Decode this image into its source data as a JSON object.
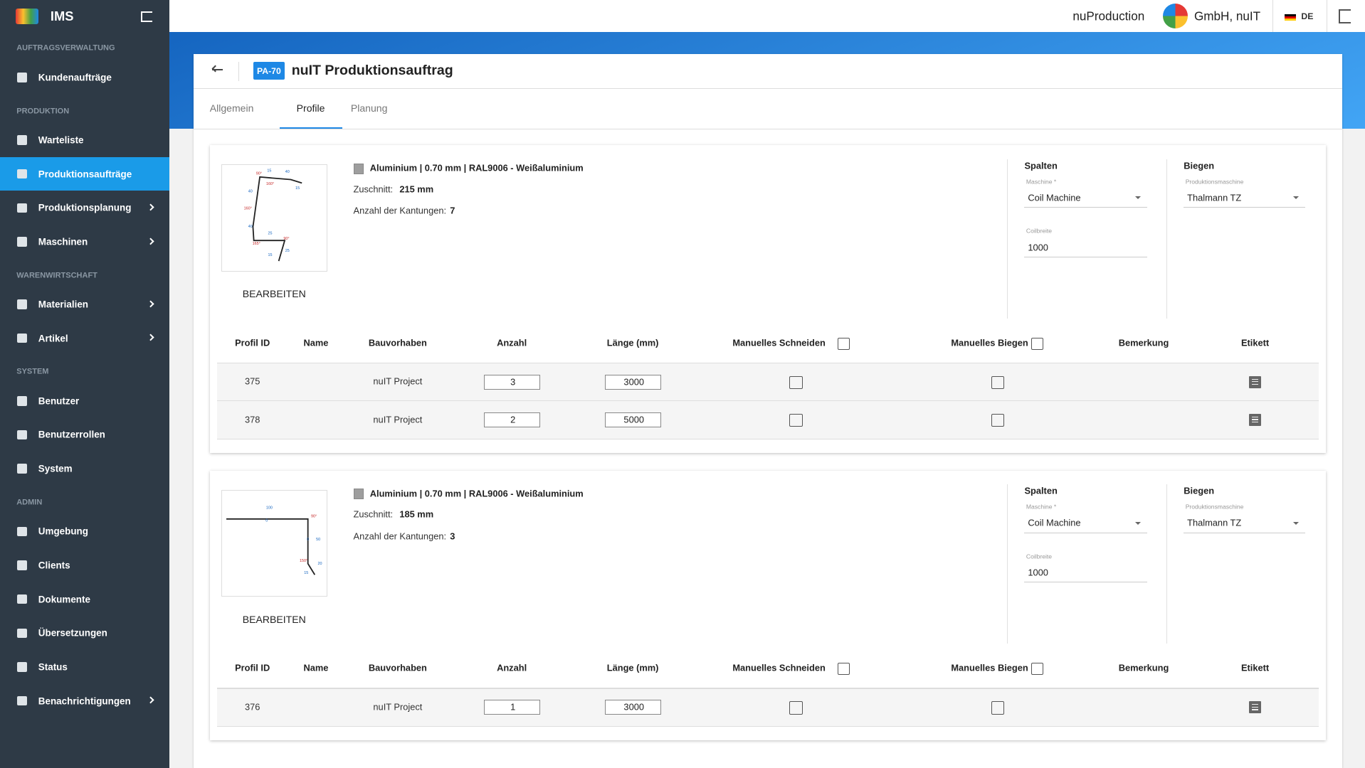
{
  "app": {
    "name": "IMS"
  },
  "sidebar": [
    {
      "section": "AUFTRAGSVERWALTUNG",
      "items": [
        {
          "label": "Kundenaufträge"
        }
      ]
    },
    {
      "section": "PRODUKTION",
      "items": [
        {
          "label": "Warteliste"
        },
        {
          "label": "Produktionsaufträge",
          "active": true
        },
        {
          "label": "Produktionsplanung",
          "submenu": true
        },
        {
          "label": "Maschinen",
          "submenu": true
        }
      ]
    },
    {
      "section": "WARENWIRTSCHAFT",
      "items": [
        {
          "label": "Materialien",
          "submenu": true
        },
        {
          "label": "Artikel",
          "submenu": true
        }
      ]
    },
    {
      "section": "SYSTEM",
      "items": [
        {
          "label": "Benutzer"
        },
        {
          "label": "Benutzerrollen"
        },
        {
          "label": "System"
        }
      ]
    },
    {
      "section": "ADMIN",
      "items": [
        {
          "label": "Umgebung"
        },
        {
          "label": "Clients"
        },
        {
          "label": "Dokumente"
        },
        {
          "label": "Übersetzungen"
        },
        {
          "label": "Status"
        },
        {
          "label": "Benachrichtigungen",
          "submenu": true
        }
      ]
    }
  ],
  "header": {
    "product": "nuProduction",
    "company": "GmbH, nuIT",
    "language": "DE"
  },
  "order": {
    "badge": "PA-70",
    "title": "nuIT Produktionsauftrag",
    "tabs": [
      "Allgemein",
      "Profile",
      "Planung"
    ],
    "active_tab": 1
  },
  "labels": {
    "zuschnitt": "Zuschnitt:",
    "kantungen": "Anzahl der Kantungen:",
    "edit": "BEARBEITEN",
    "spalten": "Spalten",
    "maschine": "Maschine *",
    "coilbreite": "Coilbreite",
    "biegen": "Biegen",
    "produktionsmaschine": "Produktionsmaschine",
    "columns": [
      "Profil ID",
      "Name",
      "Bauvorhaben",
      "Anzahl",
      "Länge (mm)",
      "Manuelles Schneiden",
      "Manuelles Biegen",
      "Bemerkung",
      "Etikett"
    ]
  },
  "profiles": [
    {
      "material": "Aluminium | 0.70 mm | RAL9006 - Weißaluminium",
      "zuschnitt": "215 mm",
      "kantungen": 7,
      "drawing_labels": [
        "90°",
        "15",
        "40",
        "160°",
        "15",
        "40",
        "160°",
        "40",
        "25",
        "90°",
        "165°",
        "15",
        "25"
      ],
      "spalten_machine": "Coil Machine",
      "coilbreite": 1000,
      "biegen_machine": "Thalmann TZ",
      "rows": [
        {
          "id": 375,
          "project": "nuIT Project",
          "anzahl": 3,
          "laenge": 3000
        },
        {
          "id": 378,
          "project": "nuIT Project",
          "anzahl": 2,
          "laenge": 5000
        }
      ]
    },
    {
      "material": "Aluminium | 0.70 mm | RAL9006 - Weißaluminium",
      "zuschnitt": "185 mm",
      "kantungen": 3,
      "drawing_labels": [
        "100",
        "0",
        "90°",
        "50",
        "0",
        "150°",
        "20",
        "15"
      ],
      "spalten_machine": "Coil Machine",
      "coilbreite": 1000,
      "biegen_machine": "Thalmann TZ",
      "rows": [
        {
          "id": 376,
          "project": "nuIT Project",
          "anzahl": 1,
          "laenge": 3000
        }
      ]
    }
  ]
}
